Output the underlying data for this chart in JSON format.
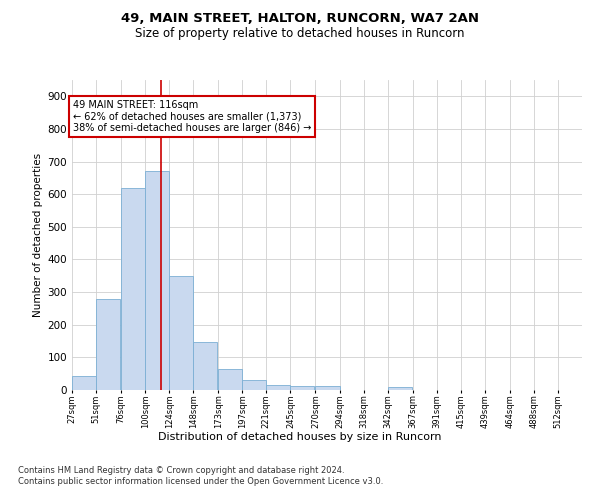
{
  "title1": "49, MAIN STREET, HALTON, RUNCORN, WA7 2AN",
  "title2": "Size of property relative to detached houses in Runcorn",
  "xlabel": "Distribution of detached houses by size in Runcorn",
  "ylabel": "Number of detached properties",
  "bin_labels": [
    "27sqm",
    "51sqm",
    "76sqm",
    "100sqm",
    "124sqm",
    "148sqm",
    "173sqm",
    "197sqm",
    "221sqm",
    "245sqm",
    "270sqm",
    "294sqm",
    "318sqm",
    "342sqm",
    "367sqm",
    "391sqm",
    "415sqm",
    "439sqm",
    "464sqm",
    "488sqm",
    "512sqm"
  ],
  "bar_values": [
    42,
    280,
    620,
    670,
    348,
    148,
    65,
    30,
    16,
    12,
    12,
    0,
    0,
    10,
    0,
    0,
    0,
    0,
    0,
    0,
    0
  ],
  "bar_color": "#c9d9ef",
  "bar_edge_color": "#7bafd4",
  "vline_x": 116,
  "bin_edges": [
    27,
    51,
    76,
    100,
    124,
    148,
    173,
    197,
    221,
    245,
    270,
    294,
    318,
    342,
    367,
    391,
    415,
    439,
    464,
    488,
    512
  ],
  "bin_width": 24,
  "annotation_line1": "49 MAIN STREET: 116sqm",
  "annotation_line2": "← 62% of detached houses are smaller (1,373)",
  "annotation_line3": "38% of semi-detached houses are larger (846) →",
  "vline_color": "#cc0000",
  "grid_color": "#d0d0d0",
  "background_color": "#ffffff",
  "footer1": "Contains HM Land Registry data © Crown copyright and database right 2024.",
  "footer2": "Contains public sector information licensed under the Open Government Licence v3.0.",
  "ylim": [
    0,
    950
  ],
  "yticks": [
    0,
    100,
    200,
    300,
    400,
    500,
    600,
    700,
    800,
    900
  ]
}
